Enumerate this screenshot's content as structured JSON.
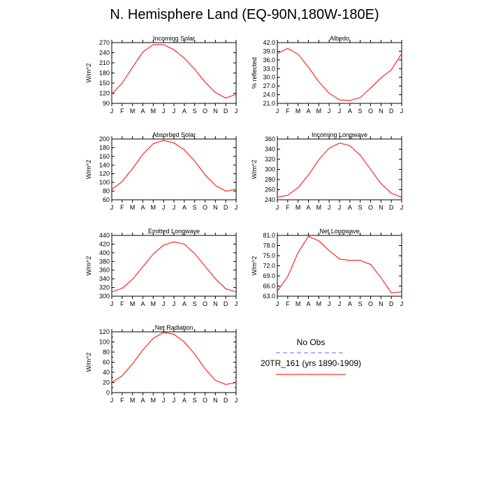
{
  "title": "N. Hemisphere Land (EQ-90N,180W-180E)",
  "month_labels": [
    "J",
    "F",
    "M",
    "A",
    "M",
    "J",
    "J",
    "A",
    "S",
    "O",
    "N",
    "D",
    "J"
  ],
  "legend": {
    "obs_label": "No Obs",
    "obs_color": "#6a6aff",
    "model_label": "20TR_161 (yrs 1890-1909)",
    "model_color": "#ff0000"
  },
  "chart_data": [
    {
      "type": "line",
      "title": "Incoming Solar",
      "ylabel": "W/m^2",
      "xlabel": "",
      "ylim": [
        90,
        270
      ],
      "yticks": [
        90,
        120,
        150,
        180,
        210,
        240,
        270
      ],
      "ytick_labels": [
        "90",
        "120",
        "150",
        "180",
        "210",
        "240",
        "270"
      ],
      "categories": [
        "J",
        "F",
        "M",
        "A",
        "M",
        "J",
        "J",
        "A",
        "S",
        "O",
        "N",
        "D",
        "J"
      ],
      "series": [
        {
          "name": "20TR_161 (yrs 1890-1909)",
          "values": [
            117,
            150,
            197,
            242,
            264,
            264,
            249,
            224,
            191,
            153,
            122,
            106,
            117
          ]
        }
      ]
    },
    {
      "type": "line",
      "title": "Albedo",
      "ylabel": "% reflected",
      "xlabel": "",
      "ylim": [
        21,
        42
      ],
      "yticks": [
        21,
        24,
        27,
        30,
        33,
        36,
        39,
        42
      ],
      "ytick_labels": [
        "21.0",
        "24.0",
        "27.0",
        "30.0",
        "33.0",
        "36.0",
        "39.0",
        "42.0"
      ],
      "categories": [
        "J",
        "F",
        "M",
        "A",
        "M",
        "J",
        "J",
        "A",
        "S",
        "O",
        "N",
        "D",
        "J"
      ],
      "series": [
        {
          "name": "20TR_161 (yrs 1890-1909)",
          "values": [
            38.2,
            40.0,
            38.0,
            33.5,
            28.5,
            24.5,
            22.2,
            22.0,
            23.0,
            26.3,
            29.8,
            32.6,
            38.2
          ]
        }
      ]
    },
    {
      "type": "line",
      "title": "Absorbed Solar",
      "ylabel": "W/m^2",
      "xlabel": "",
      "ylim": [
        60,
        200
      ],
      "yticks": [
        60,
        80,
        100,
        120,
        140,
        160,
        180,
        200
      ],
      "ytick_labels": [
        "60",
        "80",
        "100",
        "120",
        "140",
        "160",
        "180",
        "200"
      ],
      "categories": [
        "J",
        "F",
        "M",
        "A",
        "M",
        "J",
        "J",
        "A",
        "S",
        "O",
        "N",
        "D",
        "J"
      ],
      "series": [
        {
          "name": "20TR_161 (yrs 1890-1909)",
          "values": [
            84,
            102,
            132,
            165,
            189,
            197,
            191,
            175,
            149,
            118,
            93,
            80,
            84
          ]
        }
      ]
    },
    {
      "type": "line",
      "title": "Incoming Longwave",
      "ylabel": "W/m^2",
      "xlabel": "",
      "ylim": [
        240,
        360
      ],
      "yticks": [
        240,
        260,
        280,
        300,
        320,
        340,
        360
      ],
      "ytick_labels": [
        "240",
        "260",
        "280",
        "300",
        "320",
        "340",
        "360"
      ],
      "categories": [
        "J",
        "F",
        "M",
        "A",
        "M",
        "J",
        "J",
        "A",
        "S",
        "O",
        "N",
        "D",
        "J"
      ],
      "series": [
        {
          "name": "20TR_161 (yrs 1890-1909)",
          "values": [
            245,
            249,
            264,
            289,
            319,
            342,
            352,
            347,
            328,
            300,
            272,
            253,
            245
          ]
        }
      ]
    },
    {
      "type": "line",
      "title": "Emitted Longwave",
      "ylabel": "W/m^2",
      "xlabel": "",
      "ylim": [
        300,
        440
      ],
      "yticks": [
        300,
        320,
        340,
        360,
        380,
        400,
        420,
        440
      ],
      "ytick_labels": [
        "300",
        "320",
        "340",
        "360",
        "380",
        "400",
        "420",
        "440"
      ],
      "categories": [
        "J",
        "F",
        "M",
        "A",
        "M",
        "J",
        "J",
        "A",
        "S",
        "O",
        "N",
        "D",
        "J"
      ],
      "series": [
        {
          "name": "20TR_161 (yrs 1890-1909)",
          "values": [
            310,
            318,
            339,
            368,
            397,
            418,
            425,
            420,
            398,
            369,
            340,
            317,
            310
          ]
        }
      ]
    },
    {
      "type": "line",
      "title": "Net Longwave",
      "ylabel": "W/m^2",
      "xlabel": "",
      "ylim": [
        63,
        81
      ],
      "yticks": [
        63,
        66,
        69,
        72,
        75,
        78,
        81
      ],
      "ytick_labels": [
        "63.0",
        "66.0",
        "69.0",
        "72.0",
        "75.0",
        "78.0",
        "81.0"
      ],
      "categories": [
        "J",
        "F",
        "M",
        "A",
        "M",
        "J",
        "J",
        "A",
        "S",
        "O",
        "N",
        "D",
        "J"
      ],
      "series": [
        {
          "name": "20TR_161 (yrs 1890-1909)",
          "values": [
            64.5,
            68.8,
            75.9,
            80.7,
            79.4,
            76.5,
            74.0,
            73.6,
            73.6,
            72.4,
            68.5,
            64.0,
            64.3
          ]
        }
      ]
    },
    {
      "type": "line",
      "title": "Net Radiation",
      "ylabel": "W/m^2",
      "xlabel": "",
      "ylim": [
        0,
        120
      ],
      "yticks": [
        0,
        10,
        20,
        30,
        40,
        50,
        60,
        70,
        80,
        90,
        100,
        110,
        120
      ],
      "ytick_labels": [
        "0",
        "",
        "20",
        "",
        "40",
        "",
        "60",
        "",
        "80",
        "",
        "100",
        "",
        "120"
      ],
      "categories": [
        "J",
        "F",
        "M",
        "A",
        "M",
        "J",
        "J",
        "A",
        "S",
        "O",
        "N",
        "D",
        "J"
      ],
      "series": [
        {
          "name": "20TR_161 (yrs 1890-1909)",
          "values": [
            20,
            33,
            57,
            84,
            107,
            119,
            115,
            100,
            76,
            47,
            24,
            16,
            20
          ]
        }
      ]
    }
  ]
}
